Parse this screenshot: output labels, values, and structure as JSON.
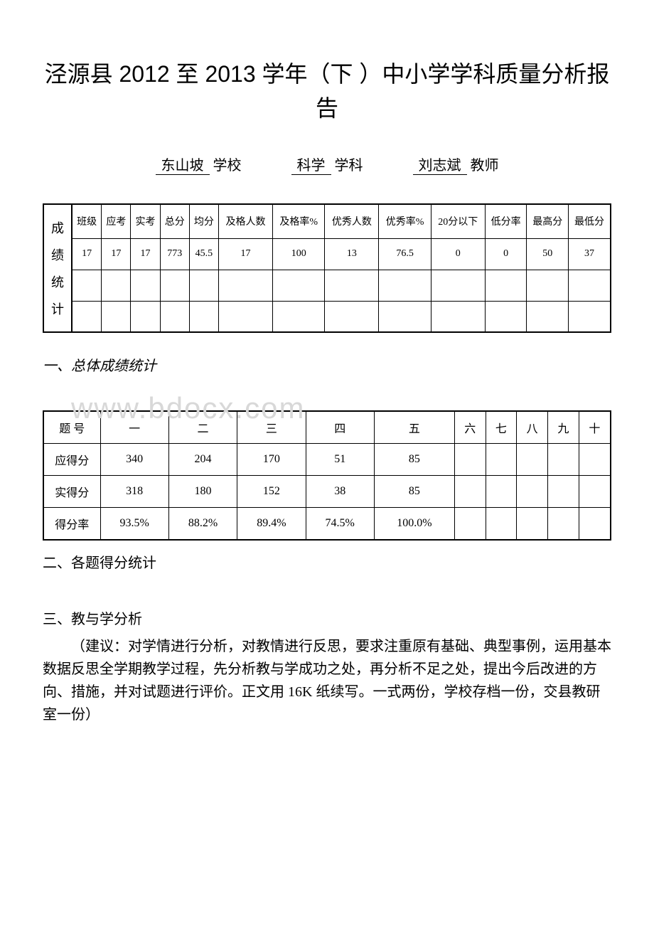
{
  "title": "泾源县 2012 至 2013 学年（下 ）中小学学科质量分析报告",
  "header": {
    "school": "东山坡",
    "school_label": "学校",
    "subject": "科学",
    "subject_label": "学科",
    "teacher": "刘志斌",
    "teacher_label": "教师"
  },
  "stat_table": {
    "vertical_header": [
      "成",
      "绩",
      "统",
      "计"
    ],
    "columns": [
      "班级",
      "应考",
      "实考",
      "总分",
      "均分",
      "及格人数",
      "及格率%",
      "优秀人数",
      "优秀率%",
      "20分以下",
      "低分率",
      "最高分",
      "最低分"
    ],
    "rows": [
      [
        "17",
        "17",
        "17",
        "773",
        "45.5",
        "17",
        "100",
        "13",
        "76.5",
        "0",
        "0",
        "50",
        "37"
      ],
      [
        "",
        "",
        "",
        "",
        "",
        "",
        "",
        "",
        "",
        "",
        "",
        "",
        ""
      ],
      [
        "",
        "",
        "",
        "",
        "",
        "",
        "",
        "",
        "",
        "",
        "",
        "",
        ""
      ]
    ]
  },
  "section1_heading": "一、总体成绩统计",
  "watermark": "www.bdocx.com",
  "score_table": {
    "row_headers": [
      "题 号",
      "应得分",
      "实得分",
      "得分率"
    ],
    "columns": [
      "一",
      "二",
      "三",
      "四",
      "五",
      "六",
      "七",
      "八",
      "九",
      "十"
    ],
    "rows": [
      [
        "340",
        "204",
        "170",
        "51",
        "85",
        "",
        "",
        "",
        "",
        ""
      ],
      [
        "318",
        "180",
        "152",
        "38",
        "85",
        "",
        "",
        "",
        "",
        ""
      ],
      [
        "93.5%",
        "88.2%",
        "89.4%",
        "74.5%",
        "100.0%",
        "",
        "",
        "",
        "",
        ""
      ]
    ]
  },
  "section2_heading": "二、各题得分统计",
  "section3_heading": "三、教与学分析",
  "body_text": "（建议：对学情进行分析，对教情进行反思，要求注重原有基础、典型事例，运用基本数据反思全学期教学过程，先分析教与学成功之处，再分析不足之处，提出今后改进的方向、措施，并对试题进行评价。正文用 16K 纸续写。一式两份，学校存档一份，交县教研室一份）"
}
